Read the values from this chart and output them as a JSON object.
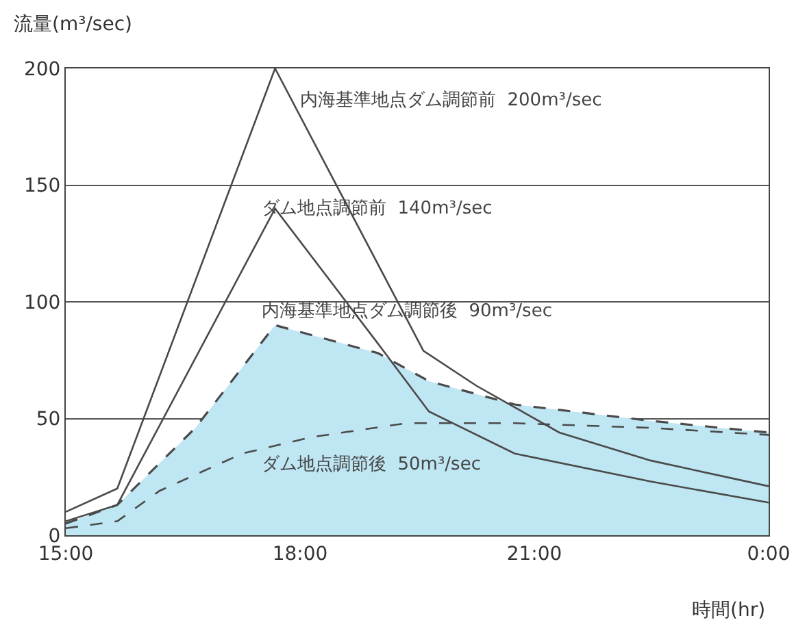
{
  "chart_data": {
    "type": "line",
    "ylabel": "流量(m³/sec)",
    "xlabel": "時間(hr)",
    "xlim": [
      15,
      24
    ],
    "xticks": [
      {
        "value": 15,
        "label": "15:00"
      },
      {
        "value": 18,
        "label": "18:00"
      },
      {
        "value": 21,
        "label": "21:00"
      },
      {
        "value": 24,
        "label": "0:00"
      }
    ],
    "ylim": [
      0,
      200
    ],
    "yticks": [
      0,
      50,
      100,
      150,
      200
    ],
    "grid": "y",
    "marker": "none",
    "series": [
      {
        "color": "#4a4a4a",
        "line_style": "solid",
        "x": [
          15,
          15.66,
          17.68,
          19.58,
          20.26,
          21.32,
          22.49,
          24
        ],
        "values": [
          10,
          20,
          200,
          79,
          64,
          44,
          32,
          21
        ]
      },
      {
        "color": "#4a4a4a",
        "line_style": "solid",
        "x": [
          15,
          15.66,
          17.68,
          19.0,
          19.65,
          20.75,
          22.49,
          24
        ],
        "values": [
          6,
          13,
          140,
          82,
          53,
          35,
          23,
          14
        ]
      },
      {
        "type": "area",
        "color": "#bfe6f3",
        "line_style": "dashed",
        "x": [
          15,
          15.66,
          16.66,
          17.68,
          19.0,
          19.65,
          20.75,
          22.49,
          24
        ],
        "values": [
          5,
          13,
          46,
          90,
          78,
          66,
          56,
          49,
          44
        ]
      },
      {
        "color": "#4a4a4a",
        "line_style": "dashed",
        "x": [
          15,
          15.66,
          16.2,
          17.26,
          18.14,
          19.36,
          20.75,
          22.49,
          24
        ],
        "values": [
          3,
          6,
          19,
          35,
          42,
          48,
          48,
          46,
          43
        ]
      }
    ],
    "annotations": [
      "内海基準地点ダム調節前  200m³/sec",
      "ダム地点調節前  140m³/sec",
      "内海基準地点ダム調節後  90m³/sec",
      "ダム地点調節後  50m³/sec"
    ]
  }
}
